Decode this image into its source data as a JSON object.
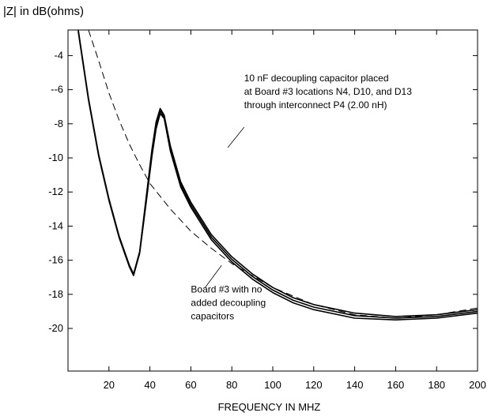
{
  "chart_data": {
    "type": "line",
    "title": "",
    "ylabel": "|Z| in dB(ohms)",
    "xlabel": "FREQUENCY IN MHZ",
    "xlim": [
      0,
      200
    ],
    "ylim": [
      -22.5,
      -2.5
    ],
    "x_ticks": [
      20,
      40,
      60,
      80,
      100,
      120,
      140,
      160,
      180,
      200
    ],
    "y_ticks": [
      -4,
      -6,
      -8,
      -10,
      -12,
      -14,
      -16,
      -18,
      -20
    ],
    "y_tick_labels": [
      "-4",
      "--6",
      "-8",
      "-10",
      "-12",
      "-14",
      "-16",
      "-18",
      "-20"
    ],
    "grid": false,
    "series": [
      {
        "style": "solid",
        "points": [
          [
            5,
            -2.5
          ],
          [
            10,
            -6.5
          ],
          [
            15,
            -9.8
          ],
          [
            20,
            -12.4
          ],
          [
            25,
            -14.6
          ],
          [
            30,
            -16.3
          ],
          [
            32,
            -16.8
          ],
          [
            35,
            -15.5
          ],
          [
            38,
            -12.5
          ],
          [
            41,
            -9.5
          ],
          [
            43,
            -7.9
          ],
          [
            45,
            -7.1
          ],
          [
            47,
            -7.5
          ],
          [
            50,
            -9.3
          ],
          [
            55,
            -11.4
          ],
          [
            60,
            -12.6
          ],
          [
            70,
            -14.5
          ],
          [
            80,
            -15.8
          ],
          [
            90,
            -16.8
          ],
          [
            100,
            -17.6
          ],
          [
            110,
            -18.2
          ],
          [
            120,
            -18.6
          ],
          [
            140,
            -19.1
          ],
          [
            160,
            -19.3
          ],
          [
            180,
            -19.2
          ],
          [
            200,
            -18.9
          ]
        ]
      },
      {
        "style": "solid",
        "points": [
          [
            5,
            -2.6
          ],
          [
            10,
            -6.6
          ],
          [
            15,
            -9.9
          ],
          [
            20,
            -12.5
          ],
          [
            25,
            -14.7
          ],
          [
            30,
            -16.4
          ],
          [
            32,
            -16.9
          ],
          [
            35,
            -15.6
          ],
          [
            38,
            -12.8
          ],
          [
            41,
            -9.9
          ],
          [
            43,
            -8.3
          ],
          [
            45,
            -7.4
          ],
          [
            47,
            -7.7
          ],
          [
            50,
            -9.6
          ],
          [
            55,
            -11.7
          ],
          [
            60,
            -12.9
          ],
          [
            70,
            -14.8
          ],
          [
            80,
            -16.1
          ],
          [
            90,
            -17.1
          ],
          [
            100,
            -17.9
          ],
          [
            110,
            -18.5
          ],
          [
            120,
            -18.9
          ],
          [
            140,
            -19.4
          ],
          [
            160,
            -19.5
          ],
          [
            180,
            -19.4
          ],
          [
            200,
            -19.1
          ]
        ]
      },
      {
        "style": "solid",
        "points": [
          [
            5,
            -2.55
          ],
          [
            10,
            -6.55
          ],
          [
            15,
            -9.85
          ],
          [
            20,
            -12.45
          ],
          [
            25,
            -14.65
          ],
          [
            30,
            -16.35
          ],
          [
            32,
            -16.85
          ],
          [
            35,
            -15.55
          ],
          [
            38,
            -12.65
          ],
          [
            41,
            -9.7
          ],
          [
            43,
            -8.1
          ],
          [
            45,
            -7.25
          ],
          [
            47,
            -7.6
          ],
          [
            50,
            -9.45
          ],
          [
            55,
            -11.55
          ],
          [
            60,
            -12.75
          ],
          [
            70,
            -14.65
          ],
          [
            80,
            -15.95
          ],
          [
            90,
            -16.95
          ],
          [
            100,
            -17.75
          ],
          [
            110,
            -18.35
          ],
          [
            120,
            -18.75
          ],
          [
            140,
            -19.25
          ],
          [
            160,
            -19.4
          ],
          [
            180,
            -19.3
          ],
          [
            200,
            -19.0
          ]
        ]
      },
      {
        "style": "dashed",
        "points": [
          [
            10,
            -2.5
          ],
          [
            15,
            -4.3
          ],
          [
            20,
            -6.2
          ],
          [
            25,
            -7.8
          ],
          [
            30,
            -9.2
          ],
          [
            35,
            -10.4
          ],
          [
            40,
            -11.5
          ],
          [
            50,
            -13.0
          ],
          [
            60,
            -14.3
          ],
          [
            70,
            -15.3
          ],
          [
            80,
            -16.2
          ],
          [
            90,
            -16.9
          ],
          [
            100,
            -17.6
          ],
          [
            120,
            -18.6
          ],
          [
            140,
            -19.2
          ],
          [
            160,
            -19.4
          ],
          [
            180,
            -19.2
          ],
          [
            200,
            -18.8
          ]
        ]
      }
    ],
    "annotations": [
      {
        "lines": [
          "10 nF decoupling capacitor placed",
          "at Board #3 locations N4, D10, and D13",
          "through interconnect P4 (2.00 nH)"
        ],
        "text_at": [
          86,
          -5.5
        ],
        "pointer": [
          [
            86,
            -8.2
          ],
          [
            78,
            -9.4
          ]
        ]
      },
      {
        "lines": [
          "Board #3 with no",
          "added decoupling",
          "capacitors"
        ],
        "text_at": [
          60,
          -17.9
        ],
        "pointer": [
          [
            67,
            -17.6
          ],
          [
            75,
            -16.3
          ]
        ]
      }
    ]
  }
}
